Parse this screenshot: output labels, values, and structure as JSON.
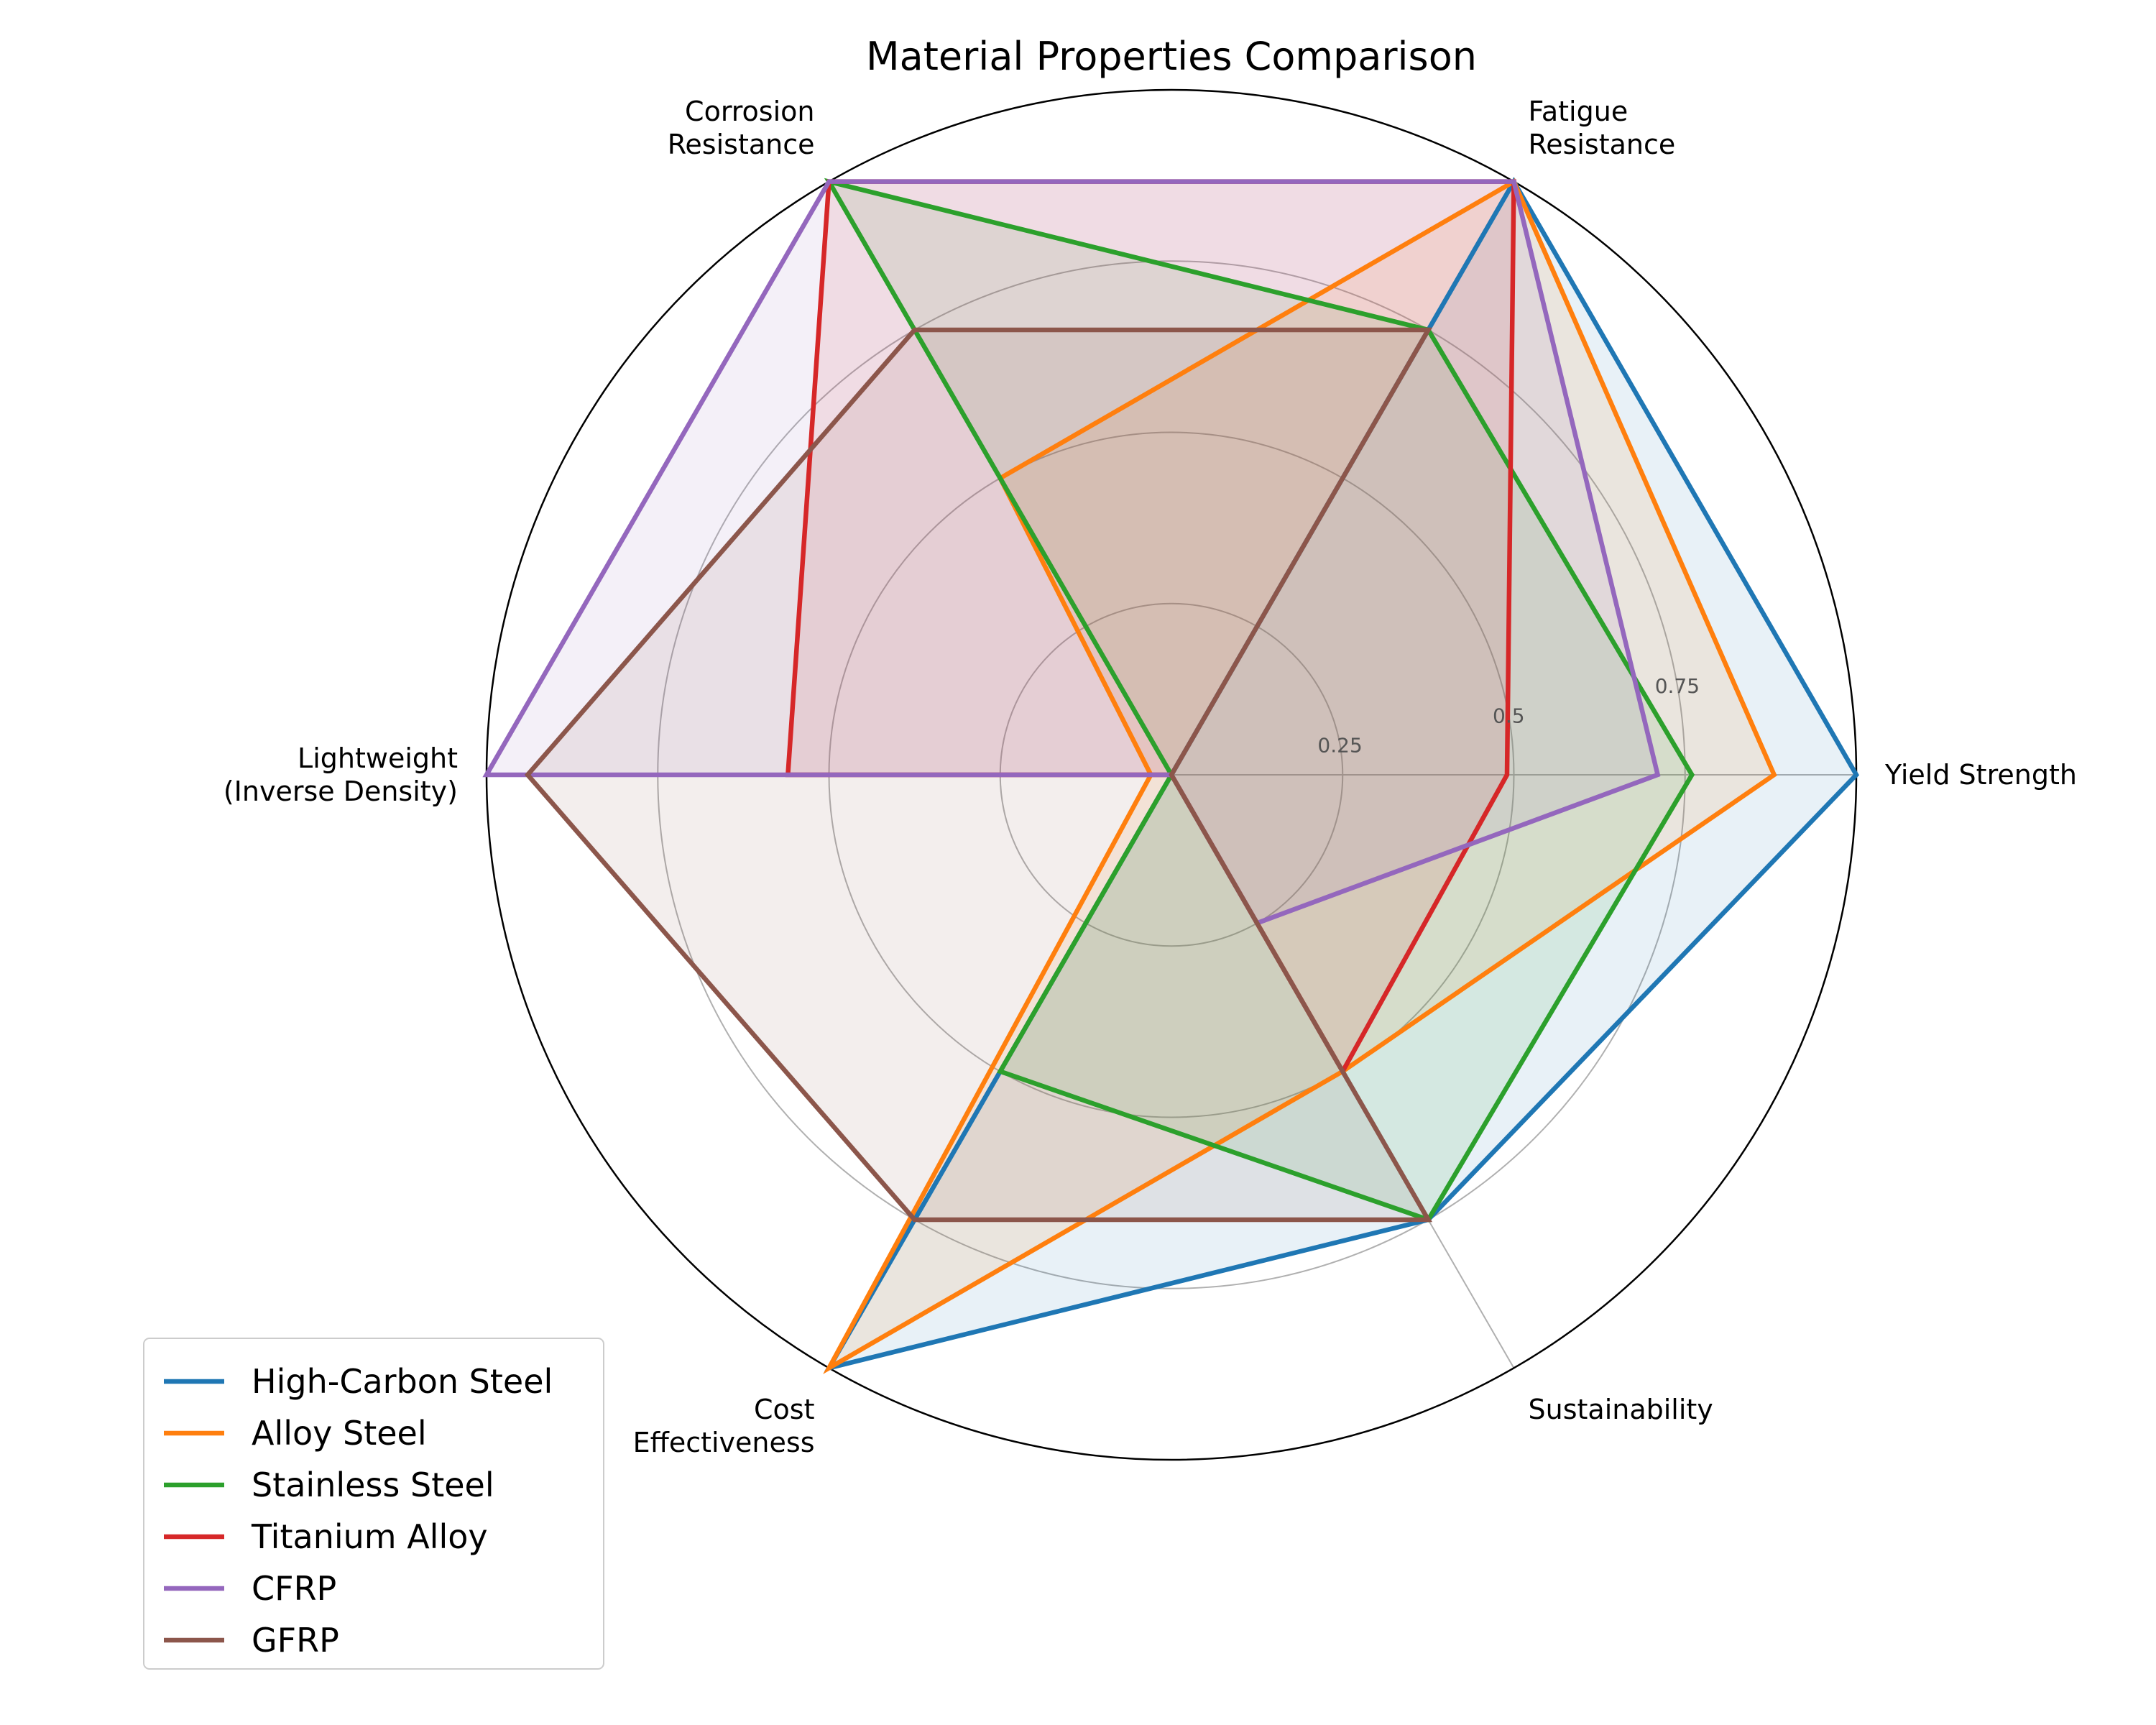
{
  "chart_data": {
    "type": "radar",
    "title": "Material Properties Comparison",
    "axes": [
      "Yield Strength",
      "Fatigue\nResistance",
      "Corrosion\nResistance",
      "Lightweight\n(Inverse Density)",
      "Cost\nEffectiveness",
      "Sustainability"
    ],
    "rlim": [
      0,
      1
    ],
    "rticks": [
      0.25,
      0.5,
      0.75
    ],
    "rtick_labels": [
      "0.25",
      "0.5",
      "0.75"
    ],
    "grid": true,
    "legend_position": "lower-left",
    "series": [
      {
        "name": "High-Carbon Steel",
        "color": "#1f77b4",
        "values": [
          1.0,
          1.0,
          0.0,
          0.0,
          1.0,
          0.75
        ]
      },
      {
        "name": "Alloy Steel",
        "color": "#ff7f0e",
        "values": [
          0.88,
          1.0,
          0.5,
          0.03,
          1.0,
          0.5
        ]
      },
      {
        "name": "Stainless Steel",
        "color": "#2ca02c",
        "values": [
          0.76,
          0.75,
          1.0,
          0.0,
          0.5,
          0.75
        ]
      },
      {
        "name": "Titanium Alloy",
        "color": "#d62728",
        "values": [
          0.49,
          1.0,
          1.0,
          0.56,
          0.0,
          0.5
        ]
      },
      {
        "name": "CFRP",
        "color": "#9467bd",
        "values": [
          0.71,
          1.0,
          1.0,
          1.0,
          0.0,
          0.25
        ]
      },
      {
        "name": "GFRP",
        "color": "#8c564b",
        "values": [
          0.0,
          0.75,
          0.75,
          0.94,
          0.75,
          0.75
        ]
      }
    ]
  }
}
